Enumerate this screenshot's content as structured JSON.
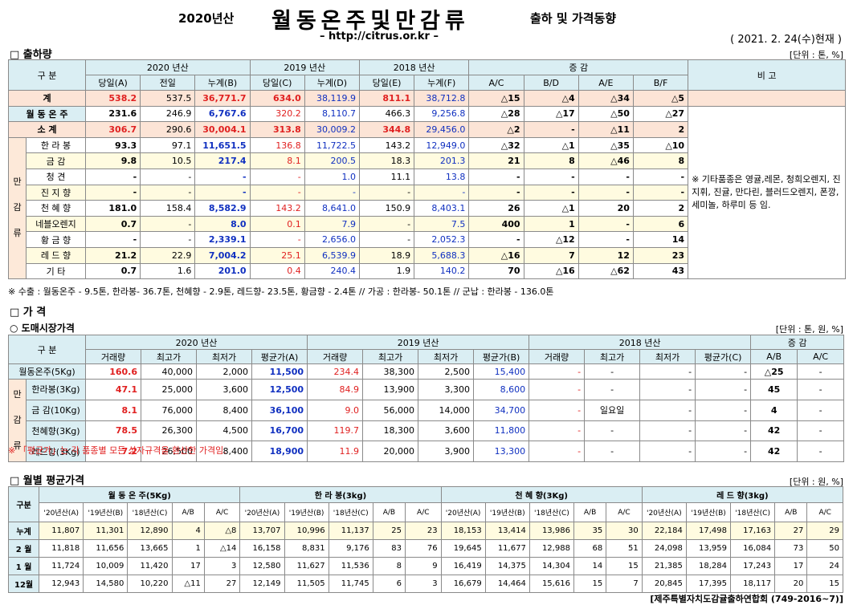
{
  "header": {
    "year": "2020년산",
    "title": "월동온주및만감류",
    "subtitle": "출하 및 가격동향",
    "url": "– http://citrus.or.kr –",
    "date": "( 2021. 2. 24(수)현재 )"
  },
  "shipment": {
    "heading": "□ 출하량",
    "unit": "[단위 : 톤, %]",
    "head1": [
      "구 분",
      "2020 년산",
      "2019 년산",
      "2018 년산",
      "증 감",
      "비 고"
    ],
    "head2": [
      "당일(A)",
      "전일",
      "누계(B)",
      "당일(C)",
      "누계(D)",
      "당일(E)",
      "누계(F)",
      "A/C",
      "B/D",
      "A/E",
      "B/F"
    ],
    "group": [
      "만",
      "감",
      "류"
    ],
    "rows": [
      {
        "label": "계",
        "cells": [
          "538.2",
          "537.5",
          "36,771.7",
          "634.0",
          "38,119.9",
          "811.1",
          "38,712.8",
          "△15",
          "△4",
          "△34",
          "△5"
        ]
      },
      {
        "label": "월 동 온 주",
        "cells": [
          "231.6",
          "246.9",
          "6,767.6",
          "320.2",
          "8,110.7",
          "466.3",
          "9,256.8",
          "△28",
          "△17",
          "△50",
          "△27"
        ]
      },
      {
        "label": "소 계",
        "cells": [
          "306.7",
          "290.6",
          "30,004.1",
          "313.8",
          "30,009.2",
          "344.8",
          "29,456.0",
          "△2",
          "-",
          "△11",
          "2"
        ]
      },
      {
        "label": "한 라 봉",
        "cells": [
          "93.3",
          "97.1",
          "11,651.5",
          "136.8",
          "11,722.5",
          "143.2",
          "12,949.0",
          "△32",
          "△1",
          "△35",
          "△10"
        ]
      },
      {
        "label": "금 감",
        "cells": [
          "9.8",
          "10.5",
          "217.4",
          "8.1",
          "200.5",
          "18.3",
          "201.3",
          "21",
          "8",
          "△46",
          "8"
        ]
      },
      {
        "label": "청 견",
        "cells": [
          "-",
          "-",
          "-",
          "-",
          "1.0",
          "11.1",
          "13.8",
          "-",
          "-",
          "-",
          "-"
        ]
      },
      {
        "label": "진 지 향",
        "cells": [
          "-",
          "-",
          "-",
          "-",
          "-",
          "-",
          "-",
          "-",
          "-",
          "-",
          "-"
        ]
      },
      {
        "label": "천 혜 향",
        "cells": [
          "181.0",
          "158.4",
          "8,582.9",
          "143.2",
          "8,641.0",
          "150.9",
          "8,403.1",
          "26",
          "△1",
          "20",
          "2"
        ]
      },
      {
        "label": "네블오렌지",
        "cells": [
          "0.7",
          "-",
          "8.0",
          "0.1",
          "7.9",
          "-",
          "7.5",
          "400",
          "1",
          "-",
          "6"
        ]
      },
      {
        "label": "황 금 향",
        "cells": [
          "-",
          "-",
          "2,339.1",
          "-",
          "2,656.0",
          "-",
          "2,052.3",
          "-",
          "△12",
          "-",
          "14"
        ]
      },
      {
        "label": "레 드 향",
        "cells": [
          "21.2",
          "22.9",
          "7,004.2",
          "25.1",
          "6,539.9",
          "18.9",
          "5,688.3",
          "△16",
          "7",
          "12",
          "23"
        ]
      },
      {
        "label": "기 타",
        "cells": [
          "0.7",
          "1.6",
          "201.0",
          "0.4",
          "240.4",
          "1.9",
          "140.2",
          "70",
          "△16",
          "△62",
          "43"
        ]
      }
    ],
    "remark": "※ 기타품종은 영귤,레몬, 청희오렌지, 진지휘, 진귤, 만다린, 블러드오렌지, 폰깡,세미놀, 하루미 등 임.",
    "footnote": "※ 수출 : 월동온주 - 9.5톤, 한라봉- 36.7톤, 천혜향 - 2.9톤, 레드향- 23.5톤, 황금향 - 2.4톤  // 가공 : 한라봉- 50.1톤 // 군납 : 한라봉 - 136.0톤"
  },
  "price": {
    "heading": "□ 가    격",
    "subheading": "○ 도매시장가격",
    "unit": "[단위 : 톤, 원, %]",
    "head1": [
      "구 분",
      "2020 년산",
      "2019 년산",
      "2018 년산",
      "증 감"
    ],
    "head2": [
      "거래량",
      "최고가",
      "최저가",
      "평균가(A)",
      "거래량",
      "최고가",
      "최저가",
      "평균가(B)",
      "거래량",
      "최고가",
      "최저가",
      "평균가(C)",
      "A/B",
      "A/C"
    ],
    "group": [
      "만",
      "감",
      "류"
    ],
    "rows": [
      {
        "label": "월동온주(5Kg)",
        "cells": [
          "160.6",
          "40,000",
          "2,000",
          "11,500",
          "234.4",
          "38,300",
          "2,500",
          "15,400",
          "-",
          "-",
          "-",
          "-",
          "△25",
          "-"
        ]
      },
      {
        "label": "한라봉(3Kg)",
        "cells": [
          "47.1",
          "25,000",
          "3,600",
          "12,500",
          "84.9",
          "13,900",
          "3,300",
          "8,600",
          "-",
          "-",
          "-",
          "-",
          "45",
          "-"
        ]
      },
      {
        "label": "금 감(10Kg)",
        "cells": [
          "8.1",
          "76,000",
          "8,400",
          "36,100",
          "9.0",
          "56,000",
          "14,000",
          "34,700",
          "-",
          "일요일",
          "-",
          "-",
          "4",
          "-"
        ]
      },
      {
        "label": "천혜향(3Kg)",
        "cells": [
          "78.5",
          "26,300",
          "4,500",
          "16,700",
          "119.7",
          "18,300",
          "3,600",
          "11,800",
          "-",
          "-",
          "-",
          "-",
          "42",
          "-"
        ]
      },
      {
        "label": "레드향(3Kg)",
        "cells": [
          "7.2",
          "26,500",
          "8,400",
          "18,900",
          "11.9",
          "20,000",
          "3,900",
          "13,300",
          "-",
          "-",
          "-",
          "-",
          "42",
          "-"
        ]
      }
    ],
    "note": "※ 「평균가」는 각 품종별 모든 상자규격을 환산한 가격임."
  },
  "monthly": {
    "heading": "□ 월별 평균가격",
    "unit": "[단위 : 원, %]",
    "head1": [
      "구분",
      "월 동 온 주(5Kg)",
      "한 라 봉(3kg)",
      "천 혜 향(3Kg)",
      "레 드 향(3kg)"
    ],
    "head2": [
      "'20년산(A)",
      "'19년산(B)",
      "'18년산(C)",
      "A/B",
      "A/C",
      "'20년산(A)",
      "'19년산(B)",
      "'18년산(C)",
      "A/B",
      "A/C",
      "'20년산(A)",
      "'19년산(B)",
      "'18년산(C)",
      "A/B",
      "A/C",
      "'20년산(A)",
      "'19년산(B)",
      "'18년산(C)",
      "A/B",
      "A/C"
    ],
    "rows": [
      {
        "label": "누계",
        "cells": [
          "11,807",
          "11,301",
          "12,890",
          "4",
          "△8",
          "13,707",
          "10,996",
          "11,137",
          "25",
          "23",
          "18,153",
          "13,414",
          "13,986",
          "35",
          "30",
          "22,184",
          "17,498",
          "17,163",
          "27",
          "29"
        ]
      },
      {
        "label": "2 월",
        "cells": [
          "11,818",
          "11,656",
          "13,665",
          "1",
          "△14",
          "16,158",
          "8,831",
          "9,176",
          "83",
          "76",
          "19,645",
          "11,677",
          "12,988",
          "68",
          "51",
          "24,098",
          "13,959",
          "16,084",
          "73",
          "50"
        ]
      },
      {
        "label": "1 월",
        "cells": [
          "11,724",
          "10,009",
          "11,420",
          "17",
          "3",
          "12,580",
          "11,627",
          "11,536",
          "8",
          "9",
          "16,419",
          "14,375",
          "14,304",
          "14",
          "15",
          "21,385",
          "18,284",
          "17,243",
          "17",
          "24"
        ]
      },
      {
        "label": "12월",
        "cells": [
          "12,943",
          "14,580",
          "10,220",
          "△11",
          "27",
          "12,149",
          "11,505",
          "11,745",
          "6",
          "3",
          "16,679",
          "14,464",
          "15,616",
          "15",
          "7",
          "20,845",
          "17,395",
          "18,117",
          "20",
          "15"
        ]
      }
    ]
  },
  "footer": "[제주특별자치도감귤출하연합회 (749-2016~7)]"
}
